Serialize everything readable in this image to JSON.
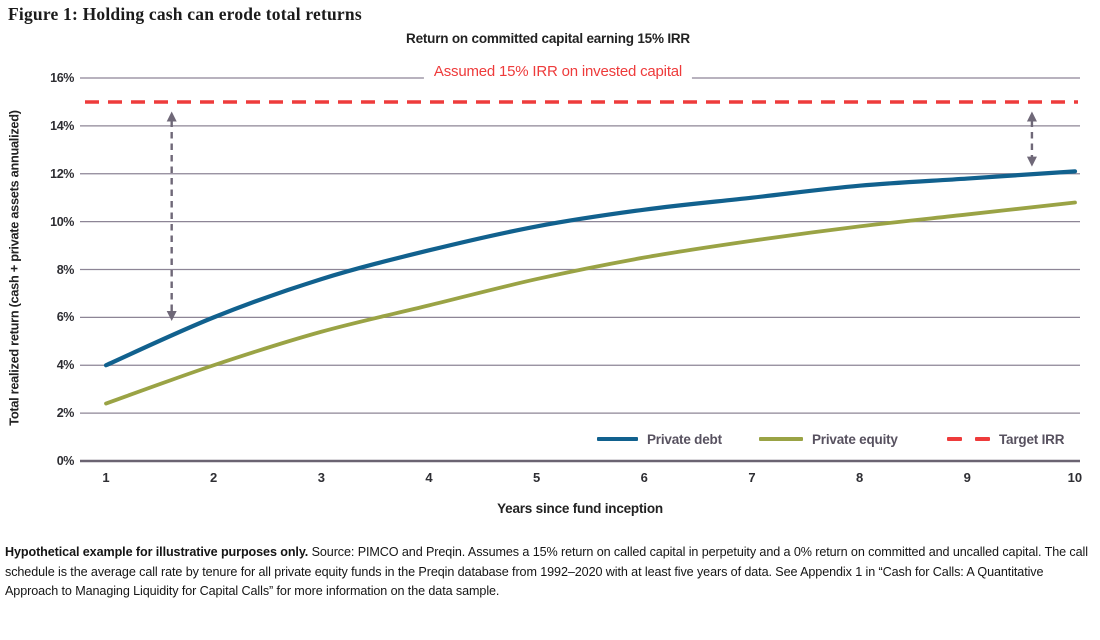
{
  "figure": {
    "title": "Figure 1: Holding cash can erode total returns"
  },
  "chart_data": {
    "type": "line",
    "title": "Return on committed capital earning 15% IRR",
    "xlabel": "Years since fund inception",
    "ylabel": "Total realized return (cash + private assets annualized)",
    "x": [
      1,
      2,
      3,
      4,
      5,
      6,
      7,
      8,
      9,
      10
    ],
    "series": [
      {
        "name": "Private debt",
        "color": "#11618e",
        "values": [
          4.0,
          6.0,
          7.6,
          8.8,
          9.8,
          10.5,
          11.0,
          11.5,
          11.8,
          12.1
        ]
      },
      {
        "name": "Private equity",
        "color": "#9aa345",
        "values": [
          2.4,
          4.0,
          5.4,
          6.5,
          7.6,
          8.5,
          9.2,
          9.8,
          10.3,
          10.8
        ]
      }
    ],
    "target_irr": {
      "name": "Target IRR",
      "value": 15,
      "color": "#ee3b3b",
      "style": "dashed"
    },
    "annotation": {
      "text": "Assumed 15% IRR on invested capital",
      "color": "#ee3b3b"
    },
    "arrows": [
      {
        "x_year": 1.61,
        "from_pct": 14.6,
        "to_pct": 5.85
      },
      {
        "x_year": 9.6,
        "from_pct": 14.6,
        "to_pct": 12.3
      }
    ],
    "ylim": [
      0,
      16
    ],
    "ytick_step": 2,
    "ytick_labels": [
      "0%",
      "2%",
      "4%",
      "6%",
      "8%",
      "10%",
      "12%",
      "14%",
      "16%"
    ],
    "xtick_labels": [
      "1",
      "2",
      "3",
      "4",
      "5",
      "6",
      "7",
      "8",
      "9",
      "10"
    ],
    "grid": "horizontal",
    "legend_position": "inside-bottom-right",
    "colors": {
      "gridline": "#8d8596",
      "axis_line": "#6b6472",
      "arrow": "#6f6878",
      "legend_text": "#57515f"
    }
  },
  "footnote": {
    "bold": "Hypothetical example for illustrative purposes only.",
    "rest": " Source: PIMCO and Preqin. Assumes a 15% return on called capital in perpetuity and a 0% return on committed and uncalled capital. The call schedule is the average call rate by tenure for all private equity funds in the Preqin database from 1992–2020 with at least five years of data. See Appendix 1 in “Cash for Calls: A Quantitative Approach to Managing Liquidity for Capital Calls” for more information on the data sample."
  }
}
